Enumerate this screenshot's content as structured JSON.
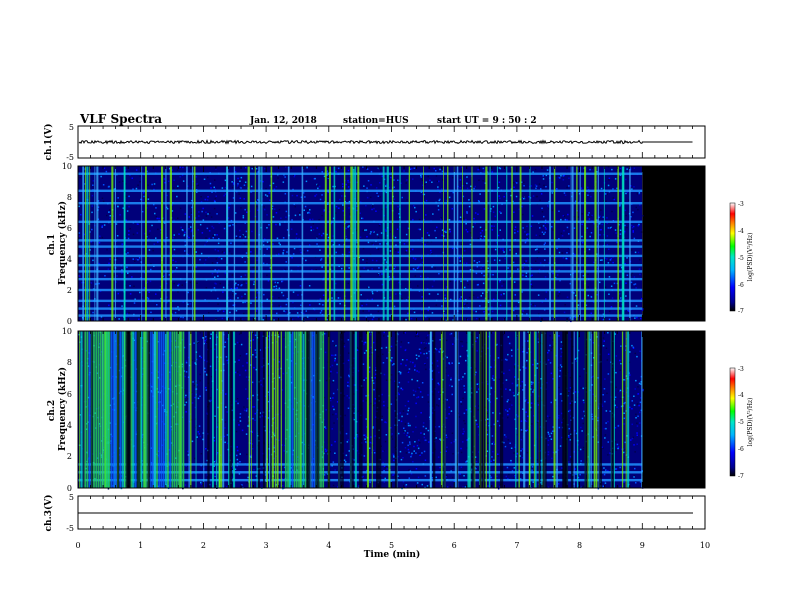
{
  "header": {
    "title": "VLF Spectra",
    "date": "Jan. 12, 2018",
    "station": "station=HUS",
    "start": "start UT =  9 : 50 : 2"
  },
  "colors": {
    "spectrogram_bg": "#00007a",
    "gap": "#000000",
    "colorbar": [
      "#000000",
      "#00008c",
      "#0000ff",
      "#00b4ff",
      "#00e6c8",
      "#00ff00",
      "#ffff00",
      "#ff7800",
      "#ff0000",
      "#ffffff"
    ]
  },
  "chart_data": [
    {
      "type": "line",
      "panel": "ch1-waveform",
      "ylabel": "ch.1(V)",
      "ylim": [
        -5,
        5
      ],
      "yticks": [
        "5",
        "-5"
      ],
      "xlim": [
        0,
        10
      ],
      "series": [
        {
          "x": [
            0,
            9,
            9.8
          ],
          "y": [
            0,
            0,
            0
          ]
        }
      ],
      "data_end_min": 9.0
    },
    {
      "type": "heatmap",
      "panel": "ch1-spectrogram",
      "ylabel": "ch.1\nFrequency (kHz)",
      "ylim": [
        0,
        10
      ],
      "yticks": [
        "0",
        "2",
        "4",
        "6",
        "8",
        "10"
      ],
      "xlim": [
        0,
        10
      ],
      "data_end_min": 9.0,
      "colorbar": {
        "label": "log(PSD)(V²/Hz)",
        "ticks": [
          "-3",
          "-4",
          "-5",
          "-6",
          "-7"
        ],
        "range": [
          -7,
          -3
        ]
      },
      "bands_khz": [
        0.35,
        0.8,
        1.3,
        2.0,
        2.7,
        3.2,
        3.6,
        4.2,
        4.8,
        5.2,
        6.4,
        7.6,
        8.4,
        9.5
      ],
      "intensity": "moderate"
    },
    {
      "type": "heatmap",
      "panel": "ch2-spectrogram",
      "ylabel": "ch.2\nFrequency (kHz)",
      "ylim": [
        0,
        10
      ],
      "yticks": [
        "0",
        "2",
        "4",
        "6",
        "8",
        "10"
      ],
      "xlim": [
        0,
        10
      ],
      "data_end_min": 9.0,
      "colorbar": {
        "label": "log(PSD)(V²/Hz)",
        "ticks": [
          "-3",
          "-4",
          "-5",
          "-6",
          "-7"
        ],
        "range": [
          -7,
          -3
        ]
      },
      "bands_khz": [
        0.5,
        1.0,
        1.5
      ],
      "intensity": "high",
      "active_intervals_min": [
        [
          0.1,
          1.0
        ],
        [
          1.0,
          1.7
        ],
        [
          3.3,
          3.9
        ]
      ]
    },
    {
      "type": "line",
      "panel": "ch3-waveform",
      "ylabel": "ch.3(V)",
      "ylim": [
        -5,
        5
      ],
      "yticks": [
        "5",
        "-5"
      ],
      "xlim": [
        0,
        10
      ],
      "series": [
        {
          "x": [
            0,
            10
          ],
          "y": [
            0,
            0
          ]
        }
      ]
    },
    {
      "type": "axis",
      "panel": "time-axis",
      "xlabel": "Time (min)",
      "xlim": [
        0,
        10
      ],
      "xticks": [
        "0",
        "1",
        "2",
        "3",
        "4",
        "5",
        "6",
        "7",
        "8",
        "9",
        "10"
      ]
    }
  ]
}
